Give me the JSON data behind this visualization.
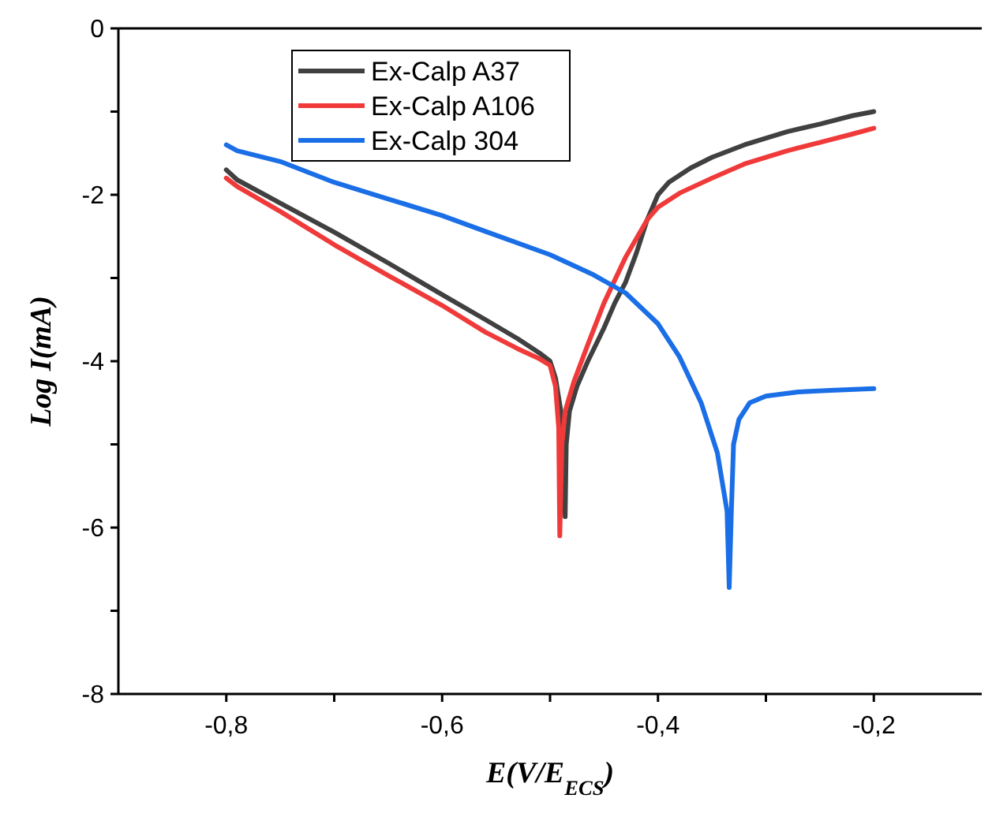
{
  "chart_data": {
    "type": "line",
    "xlabel": "E(V/E$_{ECS}$)",
    "ylabel": "Log I(mA)",
    "xlim": [
      -0.9,
      -0.1
    ],
    "ylim": [
      -8,
      0
    ],
    "xticks": [
      {
        "value": -0.8,
        "label": "-0,8"
      },
      {
        "value": -0.7,
        "label": null
      },
      {
        "value": -0.6,
        "label": "-0,6"
      },
      {
        "value": -0.5,
        "label": null
      },
      {
        "value": -0.4,
        "label": "-0,4"
      },
      {
        "value": -0.3,
        "label": null
      },
      {
        "value": -0.2,
        "label": "-0,2"
      }
    ],
    "yticks": [
      0,
      {
        "value": -1,
        "label": null
      },
      -2,
      {
        "value": -3,
        "label": null
      },
      -4,
      {
        "value": -5,
        "label": null
      },
      -6,
      {
        "value": -7,
        "label": null
      },
      -8
    ],
    "grid": false,
    "legend": "top",
    "marker": "none",
    "line_style": "solid",
    "series": [
      {
        "name": "Ex-Calp A37",
        "color": "#404040",
        "x": [
          -0.8,
          -0.79,
          -0.75,
          -0.7,
          -0.65,
          -0.6,
          -0.56,
          -0.53,
          -0.51,
          -0.5,
          -0.495,
          -0.49,
          -0.487,
          -0.486,
          -0.485,
          -0.482,
          -0.475,
          -0.465,
          -0.45,
          -0.44,
          -0.43,
          -0.42,
          -0.41,
          -0.4,
          -0.39,
          -0.37,
          -0.35,
          -0.32,
          -0.28,
          -0.25,
          -0.22,
          -0.2
        ],
        "values": [
          -1.7,
          -1.82,
          -2.1,
          -2.45,
          -2.82,
          -3.2,
          -3.5,
          -3.73,
          -3.9,
          -4.0,
          -4.2,
          -4.6,
          -5.2,
          -5.87,
          -5.0,
          -4.6,
          -4.3,
          -4.0,
          -3.6,
          -3.3,
          -3.05,
          -2.7,
          -2.3,
          -2.0,
          -1.85,
          -1.68,
          -1.55,
          -1.4,
          -1.24,
          -1.15,
          -1.05,
          -1.0
        ]
      },
      {
        "name": "Ex-Calp A106",
        "color": "#f03a3a",
        "x": [
          -0.8,
          -0.79,
          -0.75,
          -0.7,
          -0.65,
          -0.6,
          -0.56,
          -0.53,
          -0.51,
          -0.5,
          -0.495,
          -0.492,
          -0.491,
          -0.489,
          -0.486,
          -0.478,
          -0.465,
          -0.45,
          -0.43,
          -0.41,
          -0.4,
          -0.38,
          -0.35,
          -0.32,
          -0.28,
          -0.25,
          -0.22,
          -0.2
        ],
        "values": [
          -1.8,
          -1.9,
          -2.2,
          -2.6,
          -2.97,
          -3.33,
          -3.65,
          -3.85,
          -3.97,
          -4.05,
          -4.3,
          -4.8,
          -6.1,
          -5.0,
          -4.6,
          -4.25,
          -3.8,
          -3.3,
          -2.75,
          -2.3,
          -2.15,
          -1.98,
          -1.8,
          -1.63,
          -1.47,
          -1.37,
          -1.27,
          -1.2
        ]
      },
      {
        "name": "Ex-Calp 304",
        "color": "#1a6ee6",
        "x": [
          -0.8,
          -0.79,
          -0.75,
          -0.7,
          -0.65,
          -0.6,
          -0.56,
          -0.5,
          -0.46,
          -0.43,
          -0.4,
          -0.38,
          -0.36,
          -0.345,
          -0.336,
          -0.334,
          -0.332,
          -0.33,
          -0.325,
          -0.315,
          -0.3,
          -0.27,
          -0.24,
          -0.2
        ],
        "values": [
          -1.4,
          -1.47,
          -1.6,
          -1.85,
          -2.05,
          -2.25,
          -2.44,
          -2.72,
          -2.96,
          -3.18,
          -3.55,
          -3.95,
          -4.5,
          -5.1,
          -5.8,
          -6.72,
          -5.8,
          -5.0,
          -4.7,
          -4.5,
          -4.42,
          -4.37,
          -4.35,
          -4.33
        ]
      }
    ]
  }
}
